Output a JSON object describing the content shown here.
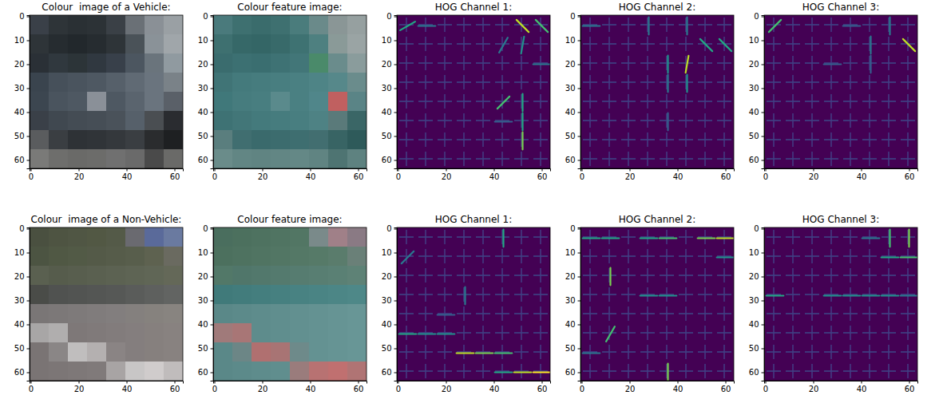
{
  "chart_data": [
    {
      "type": "image",
      "title": "Colour  image of a Vehicle:",
      "xlim": [
        -0.5,
        63.5
      ],
      "ylim": [
        63.5,
        -0.5
      ],
      "xticks": [
        0,
        20,
        40,
        60
      ],
      "yticks": [
        0,
        10,
        20,
        30,
        40,
        50,
        60
      ],
      "cells": [
        [
          "#3a4048",
          "#2e3438",
          "#2a3034",
          "#2c3236",
          "#3a4046",
          "#6a7076",
          "#8a9096",
          "#9aa0a4"
        ],
        [
          "#2e3438",
          "#262c30",
          "#22282c",
          "#262c30",
          "#2e3438",
          "#4a5258",
          "#8a9298",
          "#a0a6aa"
        ],
        [
          "#2a3036",
          "#30383e",
          "#2c3438",
          "#303840",
          "#38404a",
          "#4c5660",
          "#6a747c",
          "#909aa0"
        ],
        [
          "#3a444e",
          "#46505a",
          "#4a545e",
          "#4e5862",
          "#56606a",
          "#606a74",
          "#6a747e",
          "#7a8288"
        ],
        [
          "#3c4650",
          "#4a545e",
          "#4e5862",
          "#8a9098",
          "#4e5862",
          "#5a646e",
          "#6a747e",
          "#5a6068"
        ],
        [
          "#3a4048",
          "#404850",
          "#444c54",
          "#464e56",
          "#4a525a",
          "#56606a",
          "#4a4e52",
          "#2a2c30"
        ],
        [
          "#5a5c5e",
          "#3a3e42",
          "#2e3236",
          "#303438",
          "#34383c",
          "#3a3e42",
          "#2a2c2e",
          "#1e2022"
        ],
        [
          "#7a7a78",
          "#6e6e6c",
          "#6a6a68",
          "#6c6c6a",
          "#707070",
          "#6a6a6a",
          "#4a4a4a",
          "#6a6a68"
        ]
      ]
    },
    {
      "type": "image",
      "title": "Colour feature image:",
      "xlim": [
        -0.5,
        63.5
      ],
      "ylim": [
        63.5,
        -0.5
      ],
      "xticks": [
        0,
        20,
        40,
        60
      ],
      "yticks": [
        0,
        10,
        20,
        30,
        40,
        50,
        60
      ],
      "cells": [
        [
          "#4a7a7c",
          "#3e7070",
          "#3a6c6c",
          "#3e7070",
          "#4a7c7c",
          "#6a8a8a",
          "#8a9696",
          "#96a0a0"
        ],
        [
          "#3e7070",
          "#366868",
          "#346666",
          "#386a6a",
          "#3e7272",
          "#4e8080",
          "#8a9a98",
          "#9aa4a4"
        ],
        [
          "#3a6c6e",
          "#3c7072",
          "#3a6e70",
          "#3e7274",
          "#427678",
          "#4a8a6a",
          "#6a8c8c",
          "#8a9c9c"
        ],
        [
          "#407476",
          "#447a7c",
          "#467c7e",
          "#487e80",
          "#4a8082",
          "#4e8486",
          "#56888a",
          "#6a8c8c"
        ],
        [
          "#40787a",
          "#467c7e",
          "#487e80",
          "#5a8a8c",
          "#4a8082",
          "#50868a",
          "#c06060",
          "#5a8486"
        ],
        [
          "#3e7274",
          "#427678",
          "#447a7c",
          "#467c7e",
          "#487e80",
          "#4e8284",
          "#5a7a7a",
          "#3a6666"
        ],
        [
          "#5a7e7e",
          "#406e70",
          "#3a6a6c",
          "#3c6c6e",
          "#3e6e70",
          "#426e70",
          "#386464",
          "#2e5a5a"
        ],
        [
          "#6a8c8a",
          "#628684",
          "#608482",
          "#628684",
          "#648886",
          "#608482",
          "#4e7472",
          "#5e8280"
        ]
      ]
    },
    {
      "type": "hog",
      "title": "HOG Channel 1:",
      "xlim": [
        -0.5,
        63.5
      ],
      "ylim": [
        63.5,
        -0.5
      ],
      "xticks": [
        0,
        20,
        40,
        60
      ],
      "yticks": [
        0,
        10,
        20,
        30,
        40,
        50,
        60
      ],
      "strokes": [
        {
          "x": 4,
          "y": 4,
          "angle": 30,
          "magnitude": 0.6
        },
        {
          "x": 12,
          "y": 4,
          "angle": 0,
          "magnitude": 0.4
        },
        {
          "x": 52,
          "y": 4,
          "angle": -45,
          "magnitude": 0.9
        },
        {
          "x": 60,
          "y": 4,
          "angle": -45,
          "magnitude": 0.7
        },
        {
          "x": 44,
          "y": 12,
          "angle": 60,
          "magnitude": 0.4
        },
        {
          "x": 52,
          "y": 12,
          "angle": 80,
          "magnitude": 0.5
        },
        {
          "x": 44,
          "y": 36,
          "angle": 45,
          "magnitude": 0.7
        },
        {
          "x": 52,
          "y": 36,
          "angle": 90,
          "magnitude": 0.6
        },
        {
          "x": 52,
          "y": 44,
          "angle": 90,
          "magnitude": 0.6
        },
        {
          "x": 52,
          "y": 52,
          "angle": 90,
          "magnitude": 0.8
        },
        {
          "x": 44,
          "y": 44,
          "angle": 0,
          "magnitude": 0.3
        },
        {
          "x": 60,
          "y": 20,
          "angle": 0,
          "magnitude": 0.4
        }
      ]
    },
    {
      "type": "hog",
      "title": "HOG Channel 2:",
      "xlim": [
        -0.5,
        63.5
      ],
      "ylim": [
        63.5,
        -0.5
      ],
      "xticks": [
        0,
        20,
        40,
        60
      ],
      "yticks": [
        0,
        10,
        20,
        30,
        40,
        50,
        60
      ],
      "strokes": [
        {
          "x": 52,
          "y": 12,
          "angle": -45,
          "magnitude": 0.6
        },
        {
          "x": 60,
          "y": 12,
          "angle": -45,
          "magnitude": 0.6
        },
        {
          "x": 44,
          "y": 20,
          "angle": 80,
          "magnitude": 0.9
        },
        {
          "x": 36,
          "y": 20,
          "angle": 90,
          "magnitude": 0.5
        },
        {
          "x": 44,
          "y": 28,
          "angle": 90,
          "magnitude": 0.5
        },
        {
          "x": 36,
          "y": 28,
          "angle": 90,
          "magnitude": 0.4
        },
        {
          "x": 28,
          "y": 4,
          "angle": 90,
          "magnitude": 0.4
        },
        {
          "x": 44,
          "y": 4,
          "angle": 90,
          "magnitude": 0.4
        },
        {
          "x": 4,
          "y": 4,
          "angle": 0,
          "magnitude": 0.4
        },
        {
          "x": 36,
          "y": 44,
          "angle": 90,
          "magnitude": 0.3
        }
      ]
    },
    {
      "type": "hog",
      "title": "HOG Channel 3:",
      "xlim": [
        -0.5,
        63.5
      ],
      "ylim": [
        63.5,
        -0.5
      ],
      "xticks": [
        0,
        20,
        40,
        60
      ],
      "yticks": [
        0,
        10,
        20,
        30,
        40,
        50,
        60
      ],
      "strokes": [
        {
          "x": 4,
          "y": 4,
          "angle": 45,
          "magnitude": 0.7
        },
        {
          "x": 60,
          "y": 12,
          "angle": -45,
          "magnitude": 0.9
        },
        {
          "x": 52,
          "y": 4,
          "angle": 90,
          "magnitude": 0.4
        },
        {
          "x": 44,
          "y": 12,
          "angle": 90,
          "magnitude": 0.4
        },
        {
          "x": 36,
          "y": 4,
          "angle": 0,
          "magnitude": 0.3
        },
        {
          "x": 44,
          "y": 20,
          "angle": 90,
          "magnitude": 0.3
        },
        {
          "x": 28,
          "y": 20,
          "angle": 0,
          "magnitude": 0.3
        }
      ]
    },
    {
      "type": "image",
      "title": "Colour  image of a Non-Vehicle:",
      "xlim": [
        -0.5,
        63.5
      ],
      "ylim": [
        63.5,
        -0.5
      ],
      "xticks": [
        0,
        20,
        40,
        60
      ],
      "yticks": [
        0,
        10,
        20,
        30,
        40,
        50,
        60
      ],
      "cells": [
        [
          "#4a5040",
          "#4e5442",
          "#505644",
          "#525844",
          "#545a48",
          "#6a6a70",
          "#5a6a9a",
          "#6a7aa0"
        ],
        [
          "#4c5442",
          "#505844",
          "#525a46",
          "#545a48",
          "#565c4a",
          "#585e4c",
          "#5e6250",
          "#6a6a60"
        ],
        [
          "#5a6050",
          "#565c4c",
          "#585e4e",
          "#5a6050",
          "#5c6252",
          "#5e6454",
          "#606656",
          "#646858"
        ],
        [
          "#4a4c48",
          "#505250",
          "#525452",
          "#545654",
          "#565856",
          "#5a5c5a",
          "#5e605e",
          "#626462"
        ],
        [
          "#7a7676",
          "#7c7878",
          "#7e7a7a",
          "#807c7c",
          "#827e7e",
          "#84807e",
          "#86827e",
          "#888480"
        ],
        [
          "#a8a6a6",
          "#b0aeae",
          "#7e7878",
          "#807a7a",
          "#827c7c",
          "#847e7e",
          "#86807e",
          "#888280"
        ],
        [
          "#7a7474",
          "#8a8686",
          "#c0bebe",
          "#b4b0b0",
          "#8a8484",
          "#847e7e",
          "#86807e",
          "#888280"
        ],
        [
          "#7a7474",
          "#7c7676",
          "#7e7878",
          "#807a7a",
          "#a8a4a4",
          "#c8c6c6",
          "#d0cccc",
          "#c0bcbc"
        ]
      ]
    },
    {
      "type": "image",
      "title": "Colour feature image:",
      "xlim": [
        -0.5,
        63.5
      ],
      "ylim": [
        63.5,
        -0.5
      ],
      "xticks": [
        0,
        20,
        40,
        60
      ],
      "yticks": [
        0,
        10,
        20,
        30,
        40,
        50,
        60
      ],
      "cells": [
        [
          "#4a6e5e",
          "#4c705e",
          "#4e7260",
          "#507462",
          "#527664",
          "#7a8a8a",
          "#a08088",
          "#8a7a84"
        ],
        [
          "#4c705e",
          "#4e7260",
          "#507462",
          "#527664",
          "#547866",
          "#567a68",
          "#5a7c6c",
          "#6a8078"
        ],
        [
          "#527868",
          "#50766a",
          "#52786c",
          "#547a6e",
          "#567c70",
          "#587e72",
          "#5a8074",
          "#5e8276"
        ],
        [
          "#407a7a",
          "#427c7c",
          "#447e7e",
          "#468080",
          "#488282",
          "#4a8484",
          "#4c8686",
          "#4e8888"
        ],
        [
          "#5a8888",
          "#5c8a8a",
          "#5e8c8c",
          "#608e8e",
          "#629090",
          "#649292",
          "#669494",
          "#689696"
        ],
        [
          "#a07a7a",
          "#a87676",
          "#5e8c8c",
          "#608e8e",
          "#629090",
          "#649292",
          "#669494",
          "#689696"
        ],
        [
          "#5a8888",
          "#6c8686",
          "#b07070",
          "#a87474",
          "#6e8a8a",
          "#649292",
          "#669494",
          "#689696"
        ],
        [
          "#5a8888",
          "#5c8a8a",
          "#5e8c8c",
          "#608e8e",
          "#9a7c7c",
          "#b87272",
          "#c07070",
          "#b07474"
        ]
      ]
    },
    {
      "type": "hog",
      "title": "HOG Channel 1:",
      "xlim": [
        -0.5,
        63.5
      ],
      "ylim": [
        63.5,
        -0.5
      ],
      "xticks": [
        0,
        20,
        40,
        60
      ],
      "yticks": [
        0,
        10,
        20,
        30,
        40,
        50,
        60
      ],
      "strokes": [
        {
          "x": 4,
          "y": 12,
          "angle": 45,
          "magnitude": 0.4
        },
        {
          "x": 44,
          "y": 4,
          "angle": 90,
          "magnitude": 0.6
        },
        {
          "x": 28,
          "y": 28,
          "angle": 90,
          "magnitude": 0.4
        },
        {
          "x": 4,
          "y": 44,
          "angle": 0,
          "magnitude": 0.6
        },
        {
          "x": 12,
          "y": 44,
          "angle": 0,
          "magnitude": 0.5
        },
        {
          "x": 20,
          "y": 44,
          "angle": 0,
          "magnitude": 0.5
        },
        {
          "x": 28,
          "y": 52,
          "angle": 0,
          "magnitude": 0.9
        },
        {
          "x": 36,
          "y": 52,
          "angle": 0,
          "magnitude": 0.8
        },
        {
          "x": 44,
          "y": 52,
          "angle": 0,
          "magnitude": 0.7
        },
        {
          "x": 44,
          "y": 60,
          "angle": 0,
          "magnitude": 0.6
        },
        {
          "x": 52,
          "y": 60,
          "angle": 0,
          "magnitude": 0.9
        },
        {
          "x": 60,
          "y": 60,
          "angle": 0,
          "magnitude": 1.0
        },
        {
          "x": 20,
          "y": 36,
          "angle": 0,
          "magnitude": 0.3
        }
      ]
    },
    {
      "type": "hog",
      "title": "HOG Channel 2:",
      "xlim": [
        -0.5,
        63.5
      ],
      "ylim": [
        63.5,
        -0.5
      ],
      "xticks": [
        0,
        20,
        40,
        60
      ],
      "yticks": [
        0,
        10,
        20,
        30,
        40,
        50,
        60
      ],
      "strokes": [
        {
          "x": 4,
          "y": 4,
          "angle": 0,
          "magnitude": 0.6
        },
        {
          "x": 12,
          "y": 4,
          "angle": 0,
          "magnitude": 0.6
        },
        {
          "x": 28,
          "y": 4,
          "angle": 0,
          "magnitude": 0.6
        },
        {
          "x": 36,
          "y": 4,
          "angle": 0,
          "magnitude": 0.7
        },
        {
          "x": 52,
          "y": 4,
          "angle": 0,
          "magnitude": 0.8
        },
        {
          "x": 60,
          "y": 4,
          "angle": 0,
          "magnitude": 0.9
        },
        {
          "x": 12,
          "y": 20,
          "angle": 90,
          "magnitude": 0.8
        },
        {
          "x": 12,
          "y": 44,
          "angle": 60,
          "magnitude": 0.7
        },
        {
          "x": 36,
          "y": 60,
          "angle": 90,
          "magnitude": 0.8
        },
        {
          "x": 28,
          "y": 28,
          "angle": 0,
          "magnitude": 0.5
        },
        {
          "x": 36,
          "y": 28,
          "angle": 0,
          "magnitude": 0.5
        },
        {
          "x": 4,
          "y": 52,
          "angle": 0,
          "magnitude": 0.4
        },
        {
          "x": 60,
          "y": 12,
          "angle": 0,
          "magnitude": 0.5
        }
      ]
    },
    {
      "type": "hog",
      "title": "HOG Channel 3:",
      "xlim": [
        -0.5,
        63.5
      ],
      "ylim": [
        63.5,
        -0.5
      ],
      "xticks": [
        0,
        20,
        40,
        60
      ],
      "yticks": [
        0,
        10,
        20,
        30,
        40,
        50,
        60
      ],
      "strokes": [
        {
          "x": 52,
          "y": 4,
          "angle": 90,
          "magnitude": 0.7
        },
        {
          "x": 60,
          "y": 4,
          "angle": 90,
          "magnitude": 0.8
        },
        {
          "x": 52,
          "y": 12,
          "angle": 0,
          "magnitude": 0.6
        },
        {
          "x": 60,
          "y": 12,
          "angle": 0,
          "magnitude": 0.7
        },
        {
          "x": 4,
          "y": 28,
          "angle": 0,
          "magnitude": 0.6
        },
        {
          "x": 28,
          "y": 28,
          "angle": 0,
          "magnitude": 0.5
        },
        {
          "x": 36,
          "y": 28,
          "angle": 0,
          "magnitude": 0.5
        },
        {
          "x": 44,
          "y": 28,
          "angle": 0,
          "magnitude": 0.5
        },
        {
          "x": 52,
          "y": 28,
          "angle": 0,
          "magnitude": 0.5
        },
        {
          "x": 60,
          "y": 28,
          "angle": 0,
          "magnitude": 0.4
        },
        {
          "x": 44,
          "y": 4,
          "angle": 0,
          "magnitude": 0.4
        }
      ]
    }
  ]
}
